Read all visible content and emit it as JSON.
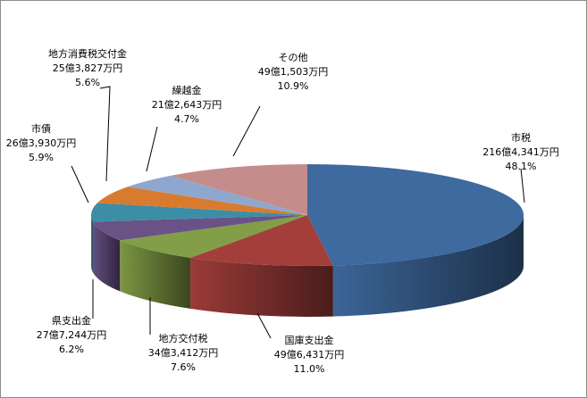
{
  "chart_data": {
    "type": "pie",
    "style": "3d",
    "slices": [
      {
        "name": "市税",
        "amount": "216億4,341万円",
        "percent": "48.1%",
        "value": 48.1,
        "color": "#3F6A9F"
      },
      {
        "name": "国庫支出金",
        "amount": "49億6,431万円",
        "percent": "11.0%",
        "value": 11.0,
        "color": "#A33E3B"
      },
      {
        "name": "地方交付税",
        "amount": "34億3,412万円",
        "percent": "7.6%",
        "value": 7.6,
        "color": "#829E46"
      },
      {
        "name": "県支出金",
        "amount": "27億7,244万円",
        "percent": "6.2%",
        "value": 6.2,
        "color": "#6A5287"
      },
      {
        "name": "市債",
        "amount": "26億3,930万円",
        "percent": "5.9%",
        "value": 5.9,
        "color": "#3B8EA5"
      },
      {
        "name": "地方消費税交付金",
        "amount": "25億3,827万円",
        "percent": "5.6%",
        "value": 5.6,
        "color": "#D97B2E"
      },
      {
        "name": "繰越金",
        "amount": "21億2,643万円",
        "percent": "4.7%",
        "value": 4.7,
        "color": "#8EA7CF"
      },
      {
        "name": "その他",
        "amount": "49億1,503万円",
        "percent": "10.9%",
        "value": 10.9,
        "color": "#C48C8B"
      }
    ]
  }
}
